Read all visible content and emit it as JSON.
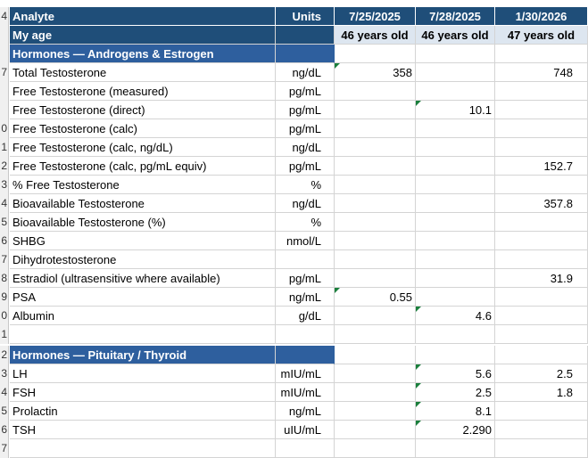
{
  "header": {
    "row_num": "4",
    "analyte": "Analyte",
    "units": "Units",
    "dates": [
      "7/25/2025",
      "7/28/2025",
      "1/30/2026"
    ]
  },
  "age_row": {
    "row_num": "",
    "label": "My age",
    "ages": [
      "46 years old",
      "46 years old",
      "47 years old"
    ]
  },
  "section1": {
    "row_num": "",
    "title": "Hormones — Androgens & Estrogen"
  },
  "rows1": [
    {
      "n": "7",
      "analyte": "Total Testosterone",
      "unit": "ng/dL",
      "v1": "358",
      "v2": "",
      "v3": "748"
    },
    {
      "n": "",
      "analyte": "Free Testosterone (measured)",
      "unit": "pg/mL",
      "v1": "",
      "v2": "",
      "v3": ""
    },
    {
      "n": "",
      "analyte": "Free Testosterone (direct)",
      "unit": "pg/mL",
      "v1": "",
      "v2": "10.1",
      "v3": ""
    },
    {
      "n": "0",
      "analyte": "Free Testosterone (calc)",
      "unit": "pg/mL",
      "v1": "",
      "v2": "",
      "v3": ""
    },
    {
      "n": "1",
      "analyte": "Free Testosterone (calc, ng/dL)",
      "unit": "ng/dL",
      "v1": "",
      "v2": "",
      "v3": ""
    },
    {
      "n": "2",
      "analyte": "Free Testosterone (calc, pg/mL equiv)",
      "unit": "pg/mL",
      "v1": "",
      "v2": "",
      "v3": "152.7"
    },
    {
      "n": "3",
      "analyte": "% Free Testosterone",
      "unit": "%",
      "v1": "",
      "v2": "",
      "v3": ""
    },
    {
      "n": "4",
      "analyte": "Bioavailable Testosterone",
      "unit": "ng/dL",
      "v1": "",
      "v2": "",
      "v3": "357.8"
    },
    {
      "n": "5",
      "analyte": "Bioavailable Testosterone (%)",
      "unit": "%",
      "v1": "",
      "v2": "",
      "v3": ""
    },
    {
      "n": "6",
      "analyte": "SHBG",
      "unit": "nmol/L",
      "v1": "",
      "v2": "",
      "v3": ""
    },
    {
      "n": "7",
      "analyte": "Dihydrotestosterone",
      "unit": "",
      "v1": "",
      "v2": "",
      "v3": ""
    },
    {
      "n": "8",
      "analyte": "Estradiol (ultrasensitive where available)",
      "unit": "pg/mL",
      "v1": "",
      "v2": "",
      "v3": "31.9"
    },
    {
      "n": "9",
      "analyte": "PSA",
      "unit": "ng/mL",
      "v1": "0.55",
      "v2": "",
      "v3": ""
    },
    {
      "n": "0",
      "analyte": "Albumin",
      "unit": "g/dL",
      "v1": "",
      "v2": "4.6",
      "v3": ""
    },
    {
      "n": "1",
      "analyte": "",
      "unit": "",
      "v1": "",
      "v2": "",
      "v3": ""
    }
  ],
  "section2": {
    "row_num": "2",
    "title": "Hormones — Pituitary / Thyroid"
  },
  "rows2": [
    {
      "n": "3",
      "analyte": "LH",
      "unit": "mIU/mL",
      "v1": "",
      "v2": "5.6",
      "v3": "2.5"
    },
    {
      "n": "4",
      "analyte": "FSH",
      "unit": "mIU/mL",
      "v1": "",
      "v2": "2.5",
      "v3": "1.8"
    },
    {
      "n": "5",
      "analyte": "Prolactin",
      "unit": "ng/mL",
      "v1": "",
      "v2": "8.1",
      "v3": ""
    },
    {
      "n": "6",
      "analyte": "TSH",
      "unit": "uIU/mL",
      "v1": "",
      "v2": "2.290",
      "v3": ""
    },
    {
      "n": "7",
      "analyte": "",
      "unit": "",
      "v1": "",
      "v2": "",
      "v3": ""
    }
  ],
  "colors": {
    "header_bg": "#1f4e79",
    "section_bg": "#2e5f9e",
    "age_value_bg": "#dde6f0",
    "comment_marker": "#1a7f3c"
  }
}
